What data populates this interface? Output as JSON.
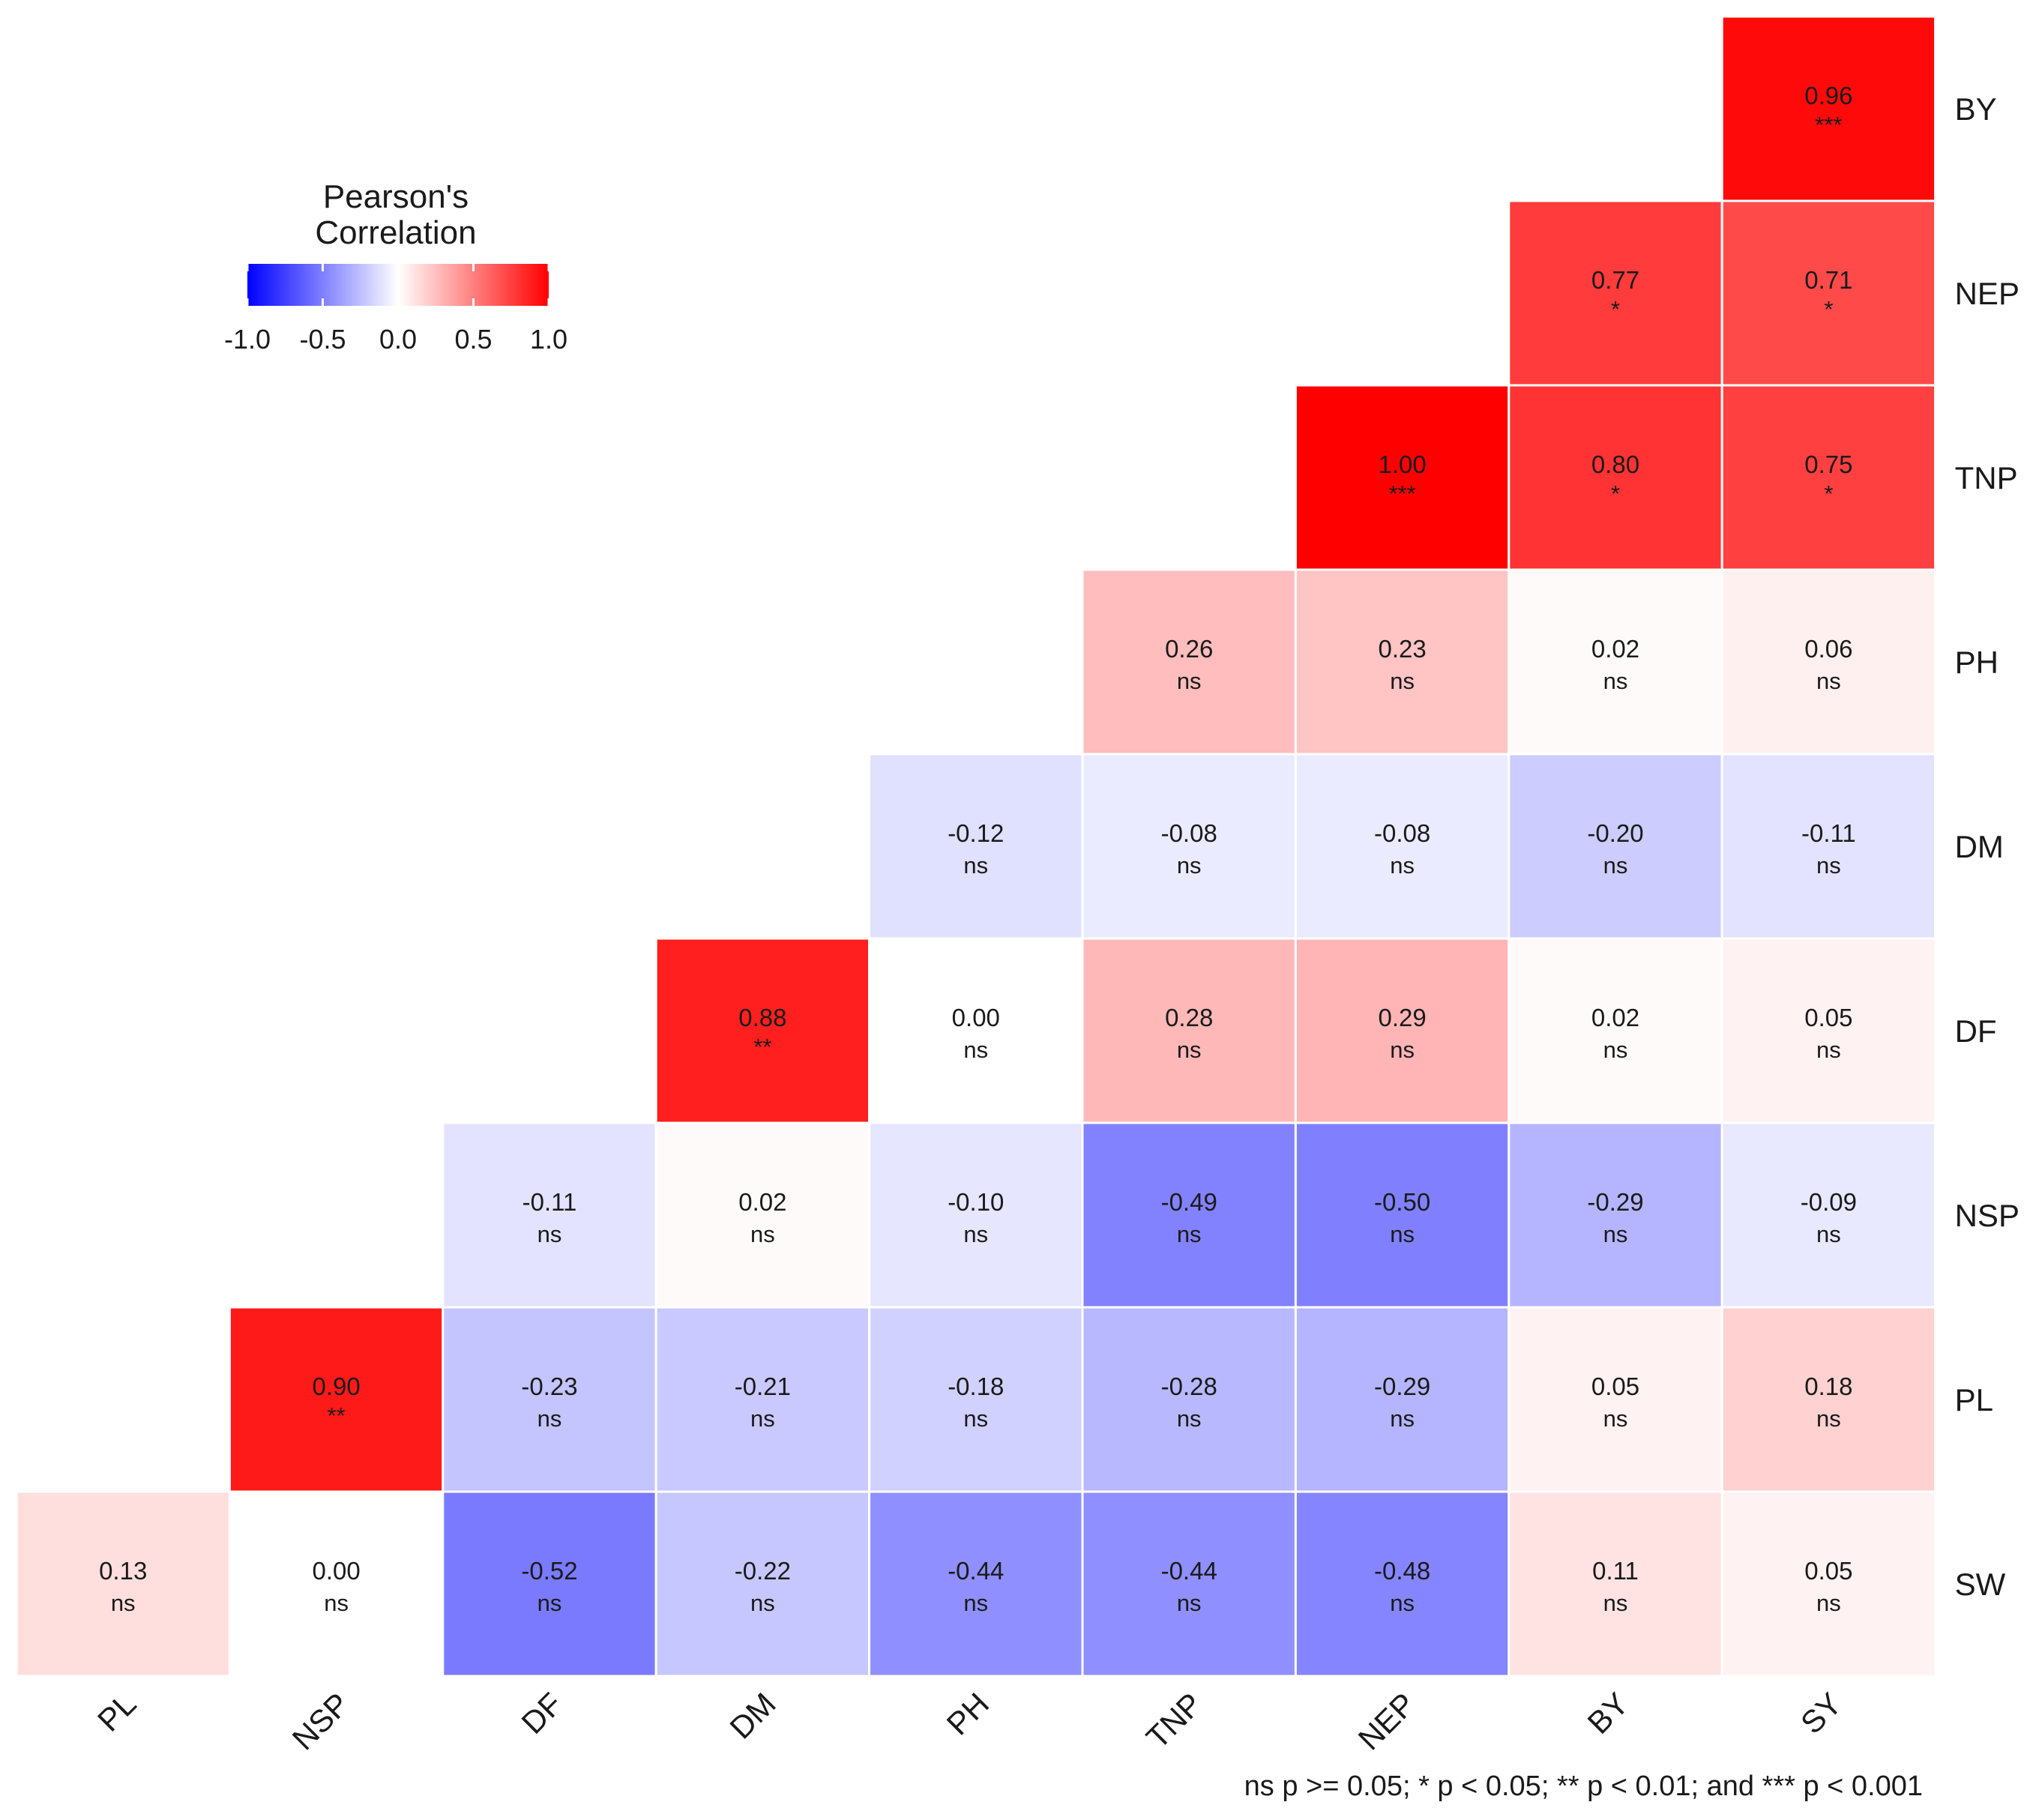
{
  "chart_data": {
    "type": "heatmap",
    "title": "",
    "x_labels": [
      "PL",
      "NSP",
      "DF",
      "DM",
      "PH",
      "TNP",
      "NEP",
      "BY",
      "SY"
    ],
    "y_labels": [
      "BY",
      "NEP",
      "TNP",
      "PH",
      "DM",
      "DF",
      "NSP",
      "PL",
      "SW"
    ],
    "cells": [
      {
        "x": "SY",
        "y": "BY",
        "value": 0.96,
        "label": "0.96",
        "sig": "***"
      },
      {
        "x": "BY",
        "y": "NEP",
        "value": 0.77,
        "label": "0.77",
        "sig": "*"
      },
      {
        "x": "SY",
        "y": "NEP",
        "value": 0.71,
        "label": "0.71",
        "sig": "*"
      },
      {
        "x": "NEP",
        "y": "TNP",
        "value": 1.0,
        "label": "1.00",
        "sig": "***"
      },
      {
        "x": "BY",
        "y": "TNP",
        "value": 0.8,
        "label": "0.80",
        "sig": "*"
      },
      {
        "x": "SY",
        "y": "TNP",
        "value": 0.75,
        "label": "0.75",
        "sig": "*"
      },
      {
        "x": "TNP",
        "y": "PH",
        "value": 0.26,
        "label": "0.26",
        "sig": "ns"
      },
      {
        "x": "NEP",
        "y": "PH",
        "value": 0.23,
        "label": "0.23",
        "sig": "ns"
      },
      {
        "x": "BY",
        "y": "PH",
        "value": 0.02,
        "label": "0.02",
        "sig": "ns"
      },
      {
        "x": "SY",
        "y": "PH",
        "value": 0.06,
        "label": "0.06",
        "sig": "ns"
      },
      {
        "x": "PH",
        "y": "DM",
        "value": -0.12,
        "label": "-0.12",
        "sig": "ns"
      },
      {
        "x": "TNP",
        "y": "DM",
        "value": -0.08,
        "label": "-0.08",
        "sig": "ns"
      },
      {
        "x": "NEP",
        "y": "DM",
        "value": -0.08,
        "label": "-0.08",
        "sig": "ns"
      },
      {
        "x": "BY",
        "y": "DM",
        "value": -0.2,
        "label": "-0.20",
        "sig": "ns"
      },
      {
        "x": "SY",
        "y": "DM",
        "value": -0.11,
        "label": "-0.11",
        "sig": "ns"
      },
      {
        "x": "DM",
        "y": "DF",
        "value": 0.88,
        "label": "0.88",
        "sig": "**"
      },
      {
        "x": "PH",
        "y": "DF",
        "value": 0.0,
        "label": "0.00",
        "sig": "ns"
      },
      {
        "x": "TNP",
        "y": "DF",
        "value": 0.28,
        "label": "0.28",
        "sig": "ns"
      },
      {
        "x": "NEP",
        "y": "DF",
        "value": 0.29,
        "label": "0.29",
        "sig": "ns"
      },
      {
        "x": "BY",
        "y": "DF",
        "value": 0.02,
        "label": "0.02",
        "sig": "ns"
      },
      {
        "x": "SY",
        "y": "DF",
        "value": 0.05,
        "label": "0.05",
        "sig": "ns"
      },
      {
        "x": "DF",
        "y": "NSP",
        "value": -0.11,
        "label": "-0.11",
        "sig": "ns"
      },
      {
        "x": "DM",
        "y": "NSP",
        "value": 0.02,
        "label": "0.02",
        "sig": "ns"
      },
      {
        "x": "PH",
        "y": "NSP",
        "value": -0.1,
        "label": "-0.10",
        "sig": "ns"
      },
      {
        "x": "TNP",
        "y": "NSP",
        "value": -0.49,
        "label": "-0.49",
        "sig": "ns"
      },
      {
        "x": "NEP",
        "y": "NSP",
        "value": -0.5,
        "label": "-0.50",
        "sig": "ns"
      },
      {
        "x": "BY",
        "y": "NSP",
        "value": -0.29,
        "label": "-0.29",
        "sig": "ns"
      },
      {
        "x": "SY",
        "y": "NSP",
        "value": -0.09,
        "label": "-0.09",
        "sig": "ns"
      },
      {
        "x": "NSP",
        "y": "PL",
        "value": 0.9,
        "label": "0.90",
        "sig": "**"
      },
      {
        "x": "DF",
        "y": "PL",
        "value": -0.23,
        "label": "-0.23",
        "sig": "ns"
      },
      {
        "x": "DM",
        "y": "PL",
        "value": -0.21,
        "label": "-0.21",
        "sig": "ns"
      },
      {
        "x": "PH",
        "y": "PL",
        "value": -0.18,
        "label": "-0.18",
        "sig": "ns"
      },
      {
        "x": "TNP",
        "y": "PL",
        "value": -0.28,
        "label": "-0.28",
        "sig": "ns"
      },
      {
        "x": "NEP",
        "y": "PL",
        "value": -0.29,
        "label": "-0.29",
        "sig": "ns"
      },
      {
        "x": "BY",
        "y": "PL",
        "value": 0.05,
        "label": "0.05",
        "sig": "ns"
      },
      {
        "x": "SY",
        "y": "PL",
        "value": 0.18,
        "label": "0.18",
        "sig": "ns"
      },
      {
        "x": "PL",
        "y": "SW",
        "value": 0.13,
        "label": "0.13",
        "sig": "ns"
      },
      {
        "x": "NSP",
        "y": "SW",
        "value": 0.0,
        "label": "0.00",
        "sig": "ns"
      },
      {
        "x": "DF",
        "y": "SW",
        "value": -0.52,
        "label": "-0.52",
        "sig": "ns"
      },
      {
        "x": "DM",
        "y": "SW",
        "value": -0.22,
        "label": "-0.22",
        "sig": "ns"
      },
      {
        "x": "PH",
        "y": "SW",
        "value": -0.44,
        "label": "-0.44",
        "sig": "ns"
      },
      {
        "x": "TNP",
        "y": "SW",
        "value": -0.44,
        "label": "-0.44",
        "sig": "ns"
      },
      {
        "x": "NEP",
        "y": "SW",
        "value": -0.48,
        "label": "-0.48",
        "sig": "ns"
      },
      {
        "x": "BY",
        "y": "SW",
        "value": 0.11,
        "label": "0.11",
        "sig": "ns"
      },
      {
        "x": "SY",
        "y": "SW",
        "value": 0.05,
        "label": "0.05",
        "sig": "ns"
      }
    ],
    "legend": {
      "title_line1": "Pearson's",
      "title_line2": "Correlation",
      "ticks": [
        "-1.0",
        "-0.5",
        "0.0",
        "0.5",
        "1.0"
      ],
      "tick_values": [
        -1.0,
        -0.5,
        0.0,
        0.5,
        1.0
      ],
      "range": [
        -1.0,
        1.0
      ],
      "low_color": "#0000ff",
      "mid_color": "#ffffff",
      "high_color": "#ff0000",
      "placement": "top-left"
    },
    "caption": "ns p >= 0.05; * p < 0.05; ** p < 0.01; and *** p < 0.001"
  }
}
